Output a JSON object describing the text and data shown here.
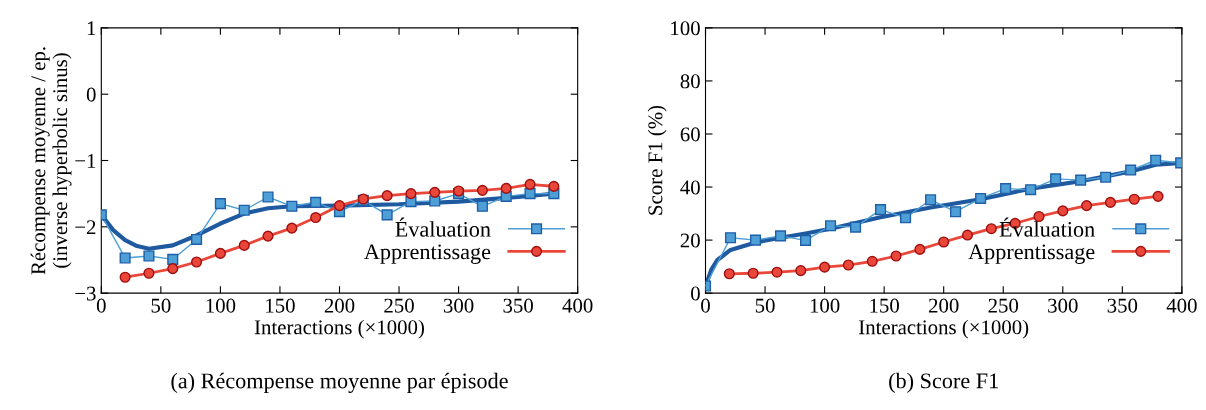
{
  "chart_data": [
    {
      "type": "line",
      "xlabel": "Interactions (×1000)",
      "ylabel": "Récompense moyenne / ep.\n(inverse hyperbolic sinus)",
      "xlim": [
        0,
        400
      ],
      "xticks": [
        0,
        50,
        100,
        150,
        200,
        250,
        300,
        350,
        400
      ],
      "ylim": [
        -3,
        1
      ],
      "yticks": [
        {
          "value": -3,
          "label": "−3"
        },
        {
          "value": -2,
          "label": "−2"
        },
        {
          "value": -1,
          "label": "−1"
        },
        0,
        1
      ],
      "grid": false,
      "legend": "bottom right",
      "annotations": [
        "(a) Récompense moyenne par épisode"
      ],
      "series": [
        {
          "color": "#1f5aa0",
          "marker": "none",
          "x": [
            0,
            10,
            20,
            30,
            40,
            60,
            80,
            100,
            120,
            140,
            160,
            200,
            250,
            300,
            350,
            380
          ],
          "values": [
            -1.82,
            -2.05,
            -2.2,
            -2.29,
            -2.33,
            -2.28,
            -2.13,
            -1.95,
            -1.8,
            -1.72,
            -1.69,
            -1.68,
            -1.66,
            -1.62,
            -1.55,
            -1.5
          ]
        },
        {
          "name": "Évaluation",
          "color": "#4d9fd6",
          "marker": "square",
          "x": [
            0,
            20,
            40,
            60,
            80,
            100,
            120,
            140,
            160,
            180,
            200,
            220,
            240,
            260,
            280,
            300,
            320,
            340,
            360,
            380
          ],
          "values": [
            -1.82,
            -2.47,
            -2.44,
            -2.49,
            -2.19,
            -1.65,
            -1.75,
            -1.55,
            -1.69,
            -1.63,
            -1.77,
            -1.6,
            -1.82,
            -1.62,
            -1.61,
            -1.5,
            -1.69,
            -1.54,
            -1.5,
            -1.5
          ]
        },
        {
          "name": "Apprentissage",
          "color": "#e8473a",
          "marker": "circle",
          "x": [
            20,
            40,
            60,
            80,
            100,
            120,
            140,
            160,
            180,
            200,
            220,
            240,
            260,
            280,
            300,
            320,
            340,
            360,
            380
          ],
          "values": [
            -2.76,
            -2.7,
            -2.63,
            -2.53,
            -2.4,
            -2.28,
            -2.14,
            -2.02,
            -1.86,
            -1.68,
            -1.58,
            -1.53,
            -1.5,
            -1.48,
            -1.46,
            -1.45,
            -1.42,
            -1.36,
            -1.39
          ]
        }
      ]
    },
    {
      "type": "line",
      "xlabel": "Interactions (×1000)",
      "ylabel": "Score F1 (%)",
      "xlim": [
        0,
        400
      ],
      "xticks": [
        0,
        50,
        100,
        150,
        200,
        250,
        300,
        350,
        400
      ],
      "ylim": [
        0,
        100
      ],
      "yticks": [
        0,
        20,
        40,
        60,
        80,
        100
      ],
      "grid": false,
      "legend": "bottom right",
      "annotations": [
        "(b) Score F1"
      ],
      "series": [
        {
          "color": "#1f5aa0",
          "marker": "none",
          "x": [
            0,
            5,
            10,
            21,
            42,
            63,
            84,
            105,
            147,
            189,
            231,
            273,
            315,
            357,
            378,
            399
          ],
          "values": [
            2.7,
            9,
            12.5,
            16.3,
            19.1,
            20.9,
            22.5,
            24.3,
            28.6,
            32.3,
            35.4,
            39.4,
            42.2,
            45.9,
            48.4,
            49.1
          ]
        },
        {
          "name": "Évaluation",
          "color": "#4d9fd6",
          "marker": "square",
          "x": [
            0,
            21,
            42,
            63,
            84,
            105,
            126,
            147,
            168,
            189,
            210,
            231,
            252,
            273,
            294,
            315,
            336,
            357,
            378,
            399
          ],
          "values": [
            2.7,
            20.9,
            20.0,
            21.6,
            19.9,
            25.4,
            24.9,
            31.5,
            28.4,
            35.2,
            30.7,
            35.7,
            39.4,
            39.0,
            43.1,
            42.6,
            43.7,
            46.4,
            50.1,
            49.1
          ]
        },
        {
          "name": "Apprentissage",
          "color": "#e8473a",
          "marker": "circle",
          "x": [
            20,
            40,
            60,
            80,
            100,
            120,
            140,
            160,
            180,
            200,
            220,
            240,
            260,
            280,
            300,
            320,
            340,
            360,
            380
          ],
          "values": [
            7.3,
            7.5,
            7.9,
            8.5,
            9.8,
            10.6,
            12.0,
            14.0,
            16.5,
            19.3,
            21.9,
            24.3,
            26.3,
            28.9,
            31.0,
            33.0,
            34.2,
            35.4,
            36.5
          ]
        }
      ]
    }
  ]
}
